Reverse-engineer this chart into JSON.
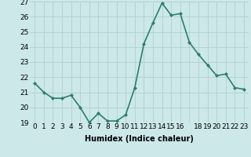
{
  "x": [
    0,
    1,
    2,
    3,
    4,
    5,
    6,
    7,
    8,
    9,
    10,
    11,
    12,
    13,
    14,
    15,
    16,
    17,
    18,
    19,
    20,
    21,
    22,
    23
  ],
  "y": [
    21.6,
    21.0,
    20.6,
    20.6,
    20.8,
    20.0,
    19.0,
    19.6,
    19.1,
    19.1,
    19.5,
    21.3,
    24.2,
    25.6,
    26.9,
    26.1,
    26.2,
    24.3,
    23.5,
    22.8,
    22.1,
    22.2,
    21.3,
    21.2
  ],
  "line_color": "#2e7d6e",
  "marker": "D",
  "marker_size": 2,
  "bg_color": "#cce8e8",
  "grid_color": "#b0d0d0",
  "xlabel": "Humidex (Indice chaleur)",
  "ylim": [
    19,
    27
  ],
  "xlim": [
    -0.5,
    23.5
  ],
  "yticks": [
    19,
    20,
    21,
    22,
    23,
    24,
    25,
    26,
    27
  ],
  "xticks": [
    0,
    1,
    2,
    3,
    4,
    5,
    6,
    7,
    8,
    9,
    10,
    11,
    12,
    13,
    14,
    15,
    16,
    17,
    18,
    19,
    20,
    21,
    22,
    23
  ],
  "xtick_labels": [
    "0",
    "1",
    "2",
    "3",
    "4",
    "5",
    "6",
    "7",
    "8",
    "9",
    "10",
    "11",
    "12",
    "13",
    "14",
    "15",
    "16",
    "",
    "18",
    "19",
    "20",
    "21",
    "22",
    "23"
  ],
  "xlabel_fontsize": 7,
  "tick_fontsize": 6.5,
  "line_width": 1.2
}
